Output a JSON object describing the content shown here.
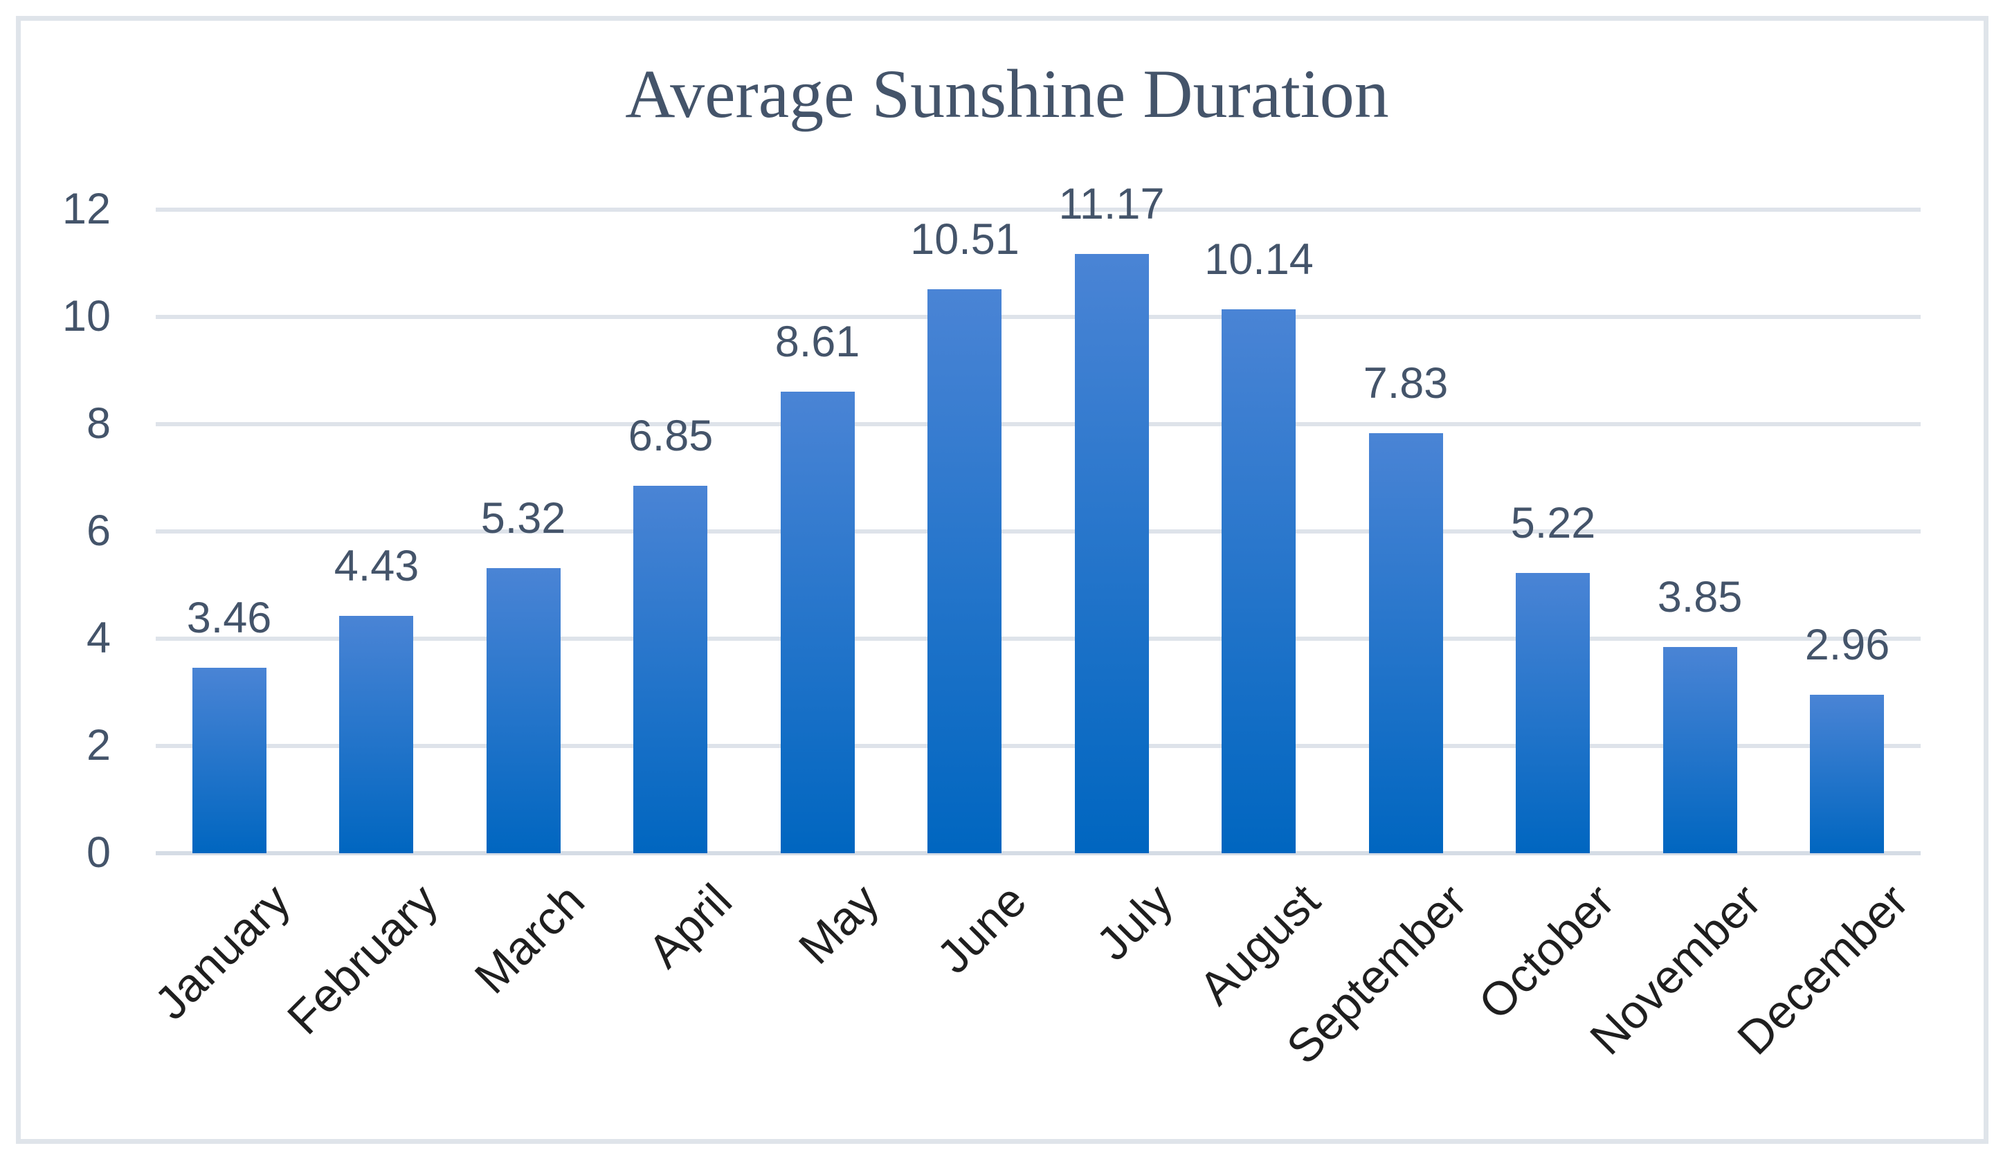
{
  "chart_data": {
    "type": "bar",
    "title": "Average Sunshine Duration",
    "categories": [
      "January",
      "February",
      "March",
      "April",
      "May",
      "June",
      "July",
      "August",
      "September",
      "October",
      "November",
      "December"
    ],
    "values": [
      3.46,
      4.43,
      5.32,
      6.85,
      8.61,
      10.51,
      11.17,
      10.14,
      7.83,
      5.22,
      3.85,
      2.96
    ],
    "value_labels": [
      "3.46",
      "4.43",
      "5.32",
      "6.85",
      "8.61",
      "10.51",
      "11.17",
      "10.14",
      "7.83",
      "5.22",
      "3.85",
      "2.96"
    ],
    "xlabel": "",
    "ylabel": "",
    "ylim": [
      0,
      12
    ],
    "yticks": [
      "0",
      "2",
      "4",
      "6",
      "8",
      "10",
      "12"
    ],
    "grid": true,
    "legend": "none",
    "colors": {
      "bar_gradient_top": "#4a84d5",
      "bar_gradient_bottom": "#0066c0",
      "title_text": "#44546a",
      "axis_tick_text": "#44546a",
      "value_label_text": "#44546a",
      "month_label_text": "#1f1f1f",
      "gridline": "#dee3ea",
      "axis_baseline": "#d5dce5",
      "frame_border": "#dfe4ea",
      "background": "#ffffff"
    }
  }
}
